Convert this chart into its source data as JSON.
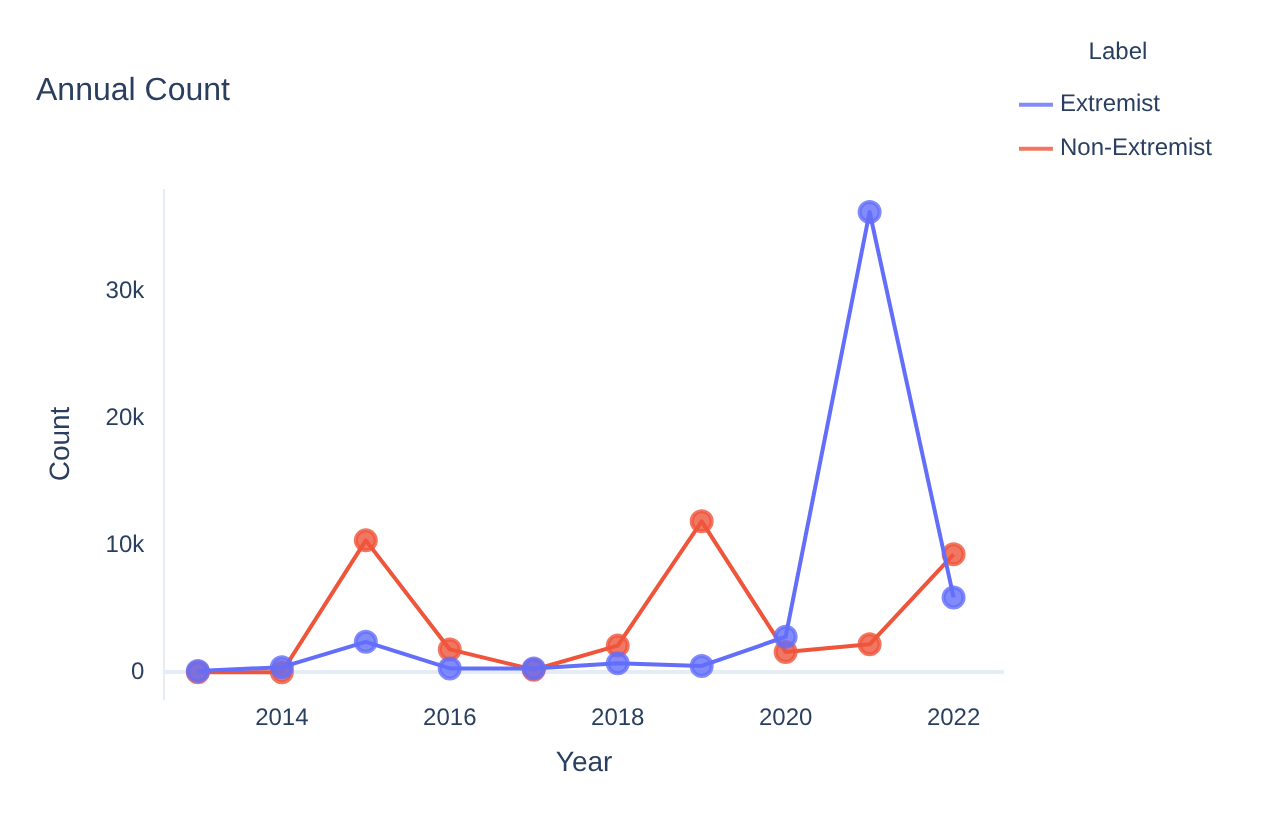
{
  "chart_data": {
    "type": "line",
    "title": "Annual Count",
    "xlabel": "Year",
    "ylabel": "Count",
    "legend_title": "Label",
    "legend": "right",
    "marker": "circle",
    "grid": false,
    "x": [
      2013,
      2014,
      2015,
      2016,
      2017,
      2018,
      2019,
      2020,
      2021,
      2022
    ],
    "xlim": [
      2012.6,
      2022.6
    ],
    "xticks": [
      2014,
      2016,
      2018,
      2020,
      2022
    ],
    "ylim": [
      -2000,
      38000
    ],
    "yticks": [
      {
        "value": 0,
        "label": "0"
      },
      {
        "value": 10000,
        "label": "10k"
      },
      {
        "value": 20000,
        "label": "20k"
      },
      {
        "value": 30000,
        "label": "30k"
      }
    ],
    "series": [
      {
        "name": "Extremist",
        "color": "#636efa",
        "values": [
          100,
          400,
          2400,
          300,
          300,
          700,
          500,
          2800,
          36300,
          5900
        ]
      },
      {
        "name": "Non-Extremist",
        "color": "#ef553b",
        "values": [
          0,
          0,
          10400,
          1800,
          200,
          2100,
          11900,
          1600,
          2200,
          9300
        ]
      }
    ]
  }
}
